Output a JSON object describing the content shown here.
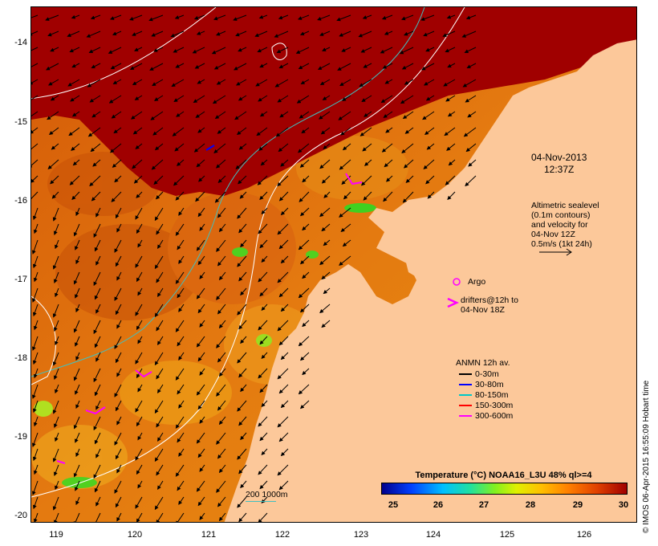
{
  "map": {
    "y_ticks": [
      "-14",
      "-15",
      "-16",
      "-17",
      "-18",
      "-19",
      "-20"
    ],
    "x_ticks": [
      "119",
      "120",
      "121",
      "122",
      "123",
      "124",
      "125",
      "126"
    ],
    "date": "04-Nov-2013",
    "time": "12:37Z",
    "info_lines": [
      "Altimetric sealevel",
      "(0.1m contours)",
      "and velocity for",
      "04-Nov 12Z",
      "0.5m/s (1kt 24h)"
    ],
    "argo_label": "Argo",
    "drifters_lines": [
      "drifters@12h to",
      "04-Nov 18Z"
    ],
    "anmn_title": "ANMN 12h av.",
    "anmn_items": [
      {
        "label": "0-30m",
        "color": "#000000"
      },
      {
        "label": "30-80m",
        "color": "#0000ff"
      },
      {
        "label": "80-150m",
        "color": "#00c8c8"
      },
      {
        "label": "150-300m",
        "color": "#ff0000"
      },
      {
        "label": "300-600m",
        "color": "#ff00ff"
      }
    ],
    "contour_label": "200  1000m",
    "colorbar_title": "Temperature (°C) NOAA16_L3U 48% ql>=4",
    "colorbar_ticks": [
      "25",
      "26",
      "27",
      "28",
      "29",
      "30"
    ],
    "credit": "© IMOS 06-Apr-2015 16:55:09 Hobart time",
    "colors": {
      "land": "#fcc89a",
      "warm": "#a00000",
      "sst": "#e06a0a",
      "contour": "#40c0c0"
    }
  }
}
